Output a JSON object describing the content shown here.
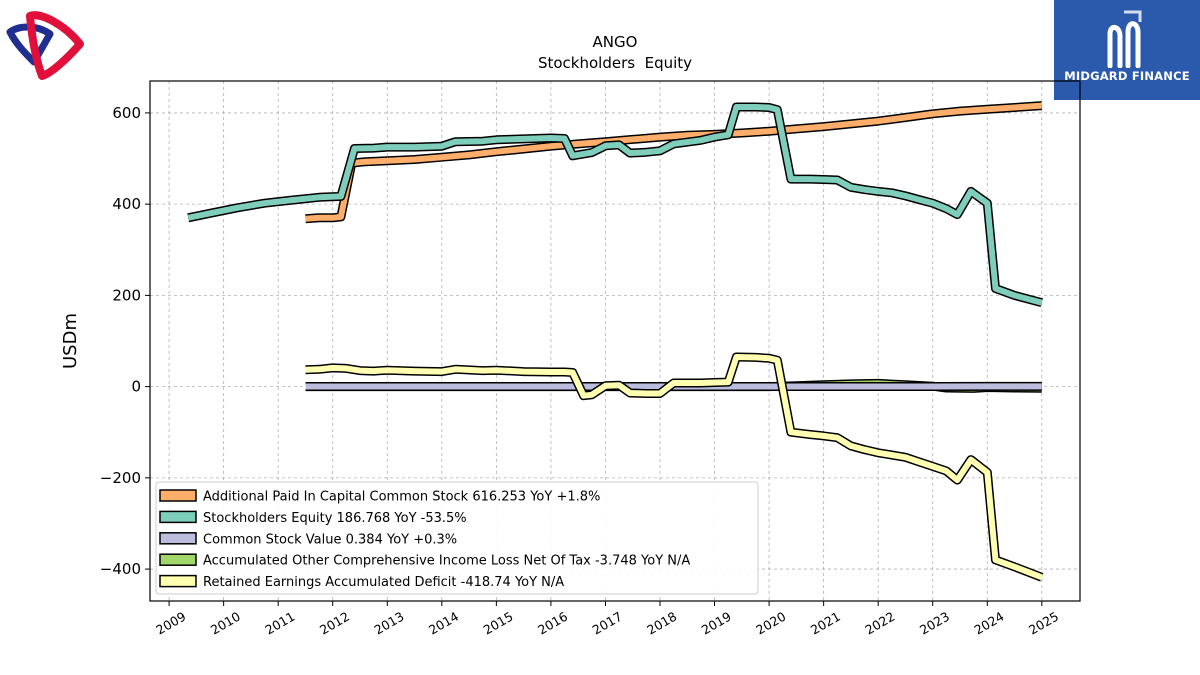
{
  "brand": {
    "name": "MIDGARD FINANCE",
    "box_color": "#2b5aad"
  },
  "chart_data": {
    "type": "line",
    "title": "ANGO",
    "subtitle": "Stockholders  Equity",
    "ylabel": "USDm",
    "xlabel": "",
    "ylim": [
      -470,
      670
    ],
    "xlim": [
      2008.65,
      2025.7
    ],
    "yticks": [
      -400,
      -200,
      0,
      200,
      400,
      600
    ],
    "ytick_labels": [
      "−400",
      "−200",
      "0",
      "200",
      "400",
      "600"
    ],
    "xticks": [
      2009,
      2010,
      2011,
      2012,
      2013,
      2014,
      2015,
      2016,
      2017,
      2018,
      2019,
      2020,
      2021,
      2022,
      2023,
      2024,
      2025
    ],
    "xtick_labels": [
      "2009",
      "2010",
      "2011",
      "2012",
      "2013",
      "2014",
      "2015",
      "2016",
      "2017",
      "2018",
      "2019",
      "2020",
      "2021",
      "2022",
      "2023",
      "2024",
      "2025"
    ],
    "grid": true,
    "legend_position": "lower-left",
    "series": [
      {
        "name": "Additional Paid In Capital Common Stock",
        "legend_label": "Additional Paid In Capital Common Stock  616.253 YoY +1.8%",
        "color": "#fdae6b",
        "x": [
          2011.5,
          2011.75,
          2012.0,
          2012.15,
          2012.35,
          2012.6,
          2013.0,
          2013.5,
          2014.0,
          2014.5,
          2015.0,
          2015.5,
          2016.0,
          2016.5,
          2017.0,
          2017.5,
          2018.0,
          2018.5,
          2019.0,
          2019.5,
          2020.0,
          2020.5,
          2021.0,
          2021.5,
          2022.0,
          2022.5,
          2023.0,
          2023.5,
          2024.0,
          2024.5,
          2025.0
        ],
        "y": [
          368,
          370,
          370,
          372,
          490,
          493,
          495,
          498,
          503,
          508,
          515,
          521,
          527,
          532,
          537,
          542,
          547,
          551,
          553,
          556,
          560,
          565,
          570,
          576,
          582,
          590,
          598,
          604,
          608,
          612,
          616
        ]
      },
      {
        "name": "Stockholders Equity",
        "legend_label": "Stockholders Equity  186.768 YoY -53.5%",
        "color": "#7fcdbb",
        "x": [
          2009.35,
          2009.75,
          2010.25,
          2010.75,
          2011.25,
          2011.75,
          2012.15,
          2012.4,
          2012.75,
          2013.0,
          2013.5,
          2014.0,
          2014.25,
          2014.75,
          2015.0,
          2015.5,
          2016.0,
          2016.25,
          2016.4,
          2016.75,
          2017.0,
          2017.25,
          2017.45,
          2017.75,
          2018.0,
          2018.25,
          2018.75,
          2019.0,
          2019.25,
          2019.4,
          2019.75,
          2020.0,
          2020.15,
          2020.4,
          2020.75,
          2021.0,
          2021.25,
          2021.5,
          2021.75,
          2022.0,
          2022.25,
          2022.5,
          2022.75,
          2023.0,
          2023.25,
          2023.45,
          2023.7,
          2024.0,
          2024.15,
          2024.5,
          2025.0
        ],
        "y": [
          370,
          380,
          392,
          402,
          409,
          415,
          417,
          522,
          523,
          525,
          525,
          527,
          537,
          538,
          541,
          543,
          545,
          544,
          506,
          513,
          528,
          530,
          512,
          514,
          517,
          532,
          540,
          547,
          552,
          613,
          613,
          612,
          607,
          455,
          455,
          454,
          453,
          437,
          432,
          428,
          425,
          418,
          410,
          402,
          390,
          377,
          428,
          402,
          215,
          200,
          184
        ]
      },
      {
        "name": "Common Stock Value",
        "legend_label": "Common Stock Value  0.384 YoY +0.3%",
        "color": "#bcbddc",
        "x": [
          2011.5,
          2012.0,
          2013.0,
          2014.0,
          2015.0,
          2016.0,
          2017.0,
          2018.0,
          2019.0,
          2020.0,
          2021.0,
          2022.0,
          2023.0,
          2024.0,
          2025.0
        ],
        "y": [
          0.3,
          0.3,
          0.3,
          0.3,
          0.3,
          0.3,
          0.3,
          0.3,
          0.3,
          0.3,
          0.3,
          0.3,
          0.3,
          0.4,
          0.4
        ]
      },
      {
        "name": "Accumulated Other Comprehensive Income Loss Net Of Tax",
        "legend_label": "Accumulated Other Comprehensive Income Loss Net Of Tax  -3.748 YoY N/A",
        "color": "#a1d76a",
        "x": [
          2011.5,
          2012.0,
          2013.0,
          2014.0,
          2015.0,
          2016.0,
          2017.0,
          2018.0,
          2019.0,
          2020.0,
          2020.5,
          2021.0,
          2021.5,
          2022.0,
          2022.5,
          2023.0,
          2023.25,
          2023.75,
          2024.0,
          2024.5,
          2025.0
        ],
        "y": [
          0,
          0,
          0,
          0,
          0,
          0,
          0,
          0,
          0,
          0,
          2,
          4,
          6,
          7,
          4,
          1,
          -3,
          -4,
          -2,
          -3,
          -3.7
        ]
      },
      {
        "name": "Retained Earnings Accumulated Deficit",
        "legend_label": "Retained Earnings Accumulated Deficit  -418.74 YoY N/A",
        "color": "#ffffb2",
        "x": [
          2011.5,
          2011.75,
          2012.0,
          2012.25,
          2012.5,
          2012.75,
          2013.0,
          2013.5,
          2014.0,
          2014.25,
          2014.75,
          2015.0,
          2015.5,
          2016.0,
          2016.25,
          2016.4,
          2016.6,
          2016.75,
          2017.0,
          2017.25,
          2017.45,
          2017.75,
          2018.0,
          2018.25,
          2018.75,
          2019.0,
          2019.25,
          2019.4,
          2019.75,
          2020.0,
          2020.15,
          2020.4,
          2020.75,
          2021.0,
          2021.25,
          2021.5,
          2021.75,
          2022.0,
          2022.25,
          2022.5,
          2022.75,
          2023.0,
          2023.25,
          2023.45,
          2023.7,
          2024.0,
          2024.15,
          2024.5,
          2025.0
        ],
        "y": [
          37,
          38,
          41,
          40,
          35,
          34,
          36,
          34,
          33,
          38,
          35,
          36,
          33,
          32,
          32,
          31,
          -20,
          -18,
          2,
          3,
          -14,
          -15,
          -15,
          8,
          8,
          9,
          10,
          65,
          64,
          62,
          58,
          -100,
          -105,
          -108,
          -112,
          -130,
          -138,
          -145,
          -150,
          -155,
          -165,
          -175,
          -185,
          -205,
          -160,
          -188,
          -380,
          -395,
          -418
        ]
      }
    ]
  }
}
